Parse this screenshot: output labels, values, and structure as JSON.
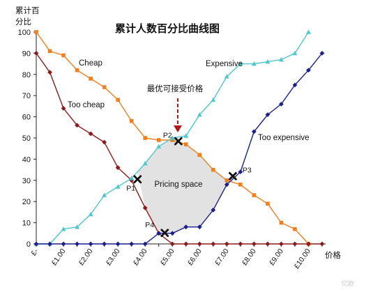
{
  "chart_data": {
    "type": "line",
    "title": "累计人数百分比曲线图",
    "ylabel_line1": "累计百",
    "ylabel_line2": "分比",
    "xlabel": "价格",
    "ylim": [
      0,
      100
    ],
    "yticks": [
      0,
      10,
      20,
      30,
      40,
      50,
      60,
      70,
      80,
      90,
      100
    ],
    "x": [
      0,
      0.5,
      1,
      1.5,
      2,
      2.5,
      3,
      3.5,
      4,
      4.5,
      5,
      5.5,
      6,
      6.5,
      7,
      7.5,
      8,
      8.5,
      9,
      9.5,
      10,
      10.5
    ],
    "xticks": [
      {
        "x": 0,
        "label": "£-"
      },
      {
        "x": 1,
        "label": "£1.00"
      },
      {
        "x": 2,
        "label": "£2.00"
      },
      {
        "x": 3,
        "label": "£3.00"
      },
      {
        "x": 4,
        "label": "£4.00"
      },
      {
        "x": 5,
        "label": "£5.00"
      },
      {
        "x": 6,
        "label": "£6.00"
      },
      {
        "x": 7,
        "label": "£7.00"
      },
      {
        "x": 8,
        "label": "£8.00"
      },
      {
        "x": 9,
        "label": "£9.00"
      },
      {
        "x": 10,
        "label": "£10.00"
      }
    ],
    "series": [
      {
        "key": "cheap",
        "name": "Cheap",
        "color": "#f07f1f",
        "marker": "square",
        "values": [
          100,
          91,
          89,
          82,
          78,
          74,
          68,
          58,
          50,
          49,
          49,
          47,
          42,
          35,
          30,
          28,
          23,
          19,
          10,
          7,
          0,
          null
        ]
      },
      {
        "key": "too_cheap",
        "name": "Too cheap",
        "color": "#8b1a1a",
        "marker": "diamond",
        "values": [
          90,
          81,
          64,
          56,
          52,
          48,
          36,
          30,
          17,
          5,
          0,
          0,
          0,
          0,
          0,
          0,
          0,
          0,
          0,
          0,
          0,
          0
        ]
      },
      {
        "key": "expensive",
        "name": "Expensive",
        "color": "#4ec7cf",
        "marker": "triangle",
        "values": [
          0,
          0,
          7,
          8,
          14,
          23,
          27,
          31,
          38,
          46,
          50,
          51,
          61,
          68,
          79,
          85,
          85,
          86,
          87,
          90,
          100,
          null
        ]
      },
      {
        "key": "too_expensive",
        "name": "Too expensive",
        "color": "#1a1f8c",
        "marker": "diamond",
        "values": [
          0,
          0,
          0,
          0,
          0,
          0,
          0,
          0,
          0,
          5,
          5,
          8,
          8,
          16,
          28,
          34,
          53,
          61,
          66,
          75,
          82,
          90
        ]
      }
    ],
    "points": [
      {
        "name": "P1",
        "x": 3.72,
        "y": 30.5
      },
      {
        "name": "P2",
        "x": 5.22,
        "y": 48.5
      },
      {
        "name": "P3",
        "x": 7.22,
        "y": 32
      },
      {
        "name": "P4",
        "x": 4.72,
        "y": 5.2
      }
    ],
    "pricing_space_label": "Pricing space",
    "optimal_annotation": "最优可接受价格",
    "watermark": "亿欧"
  }
}
